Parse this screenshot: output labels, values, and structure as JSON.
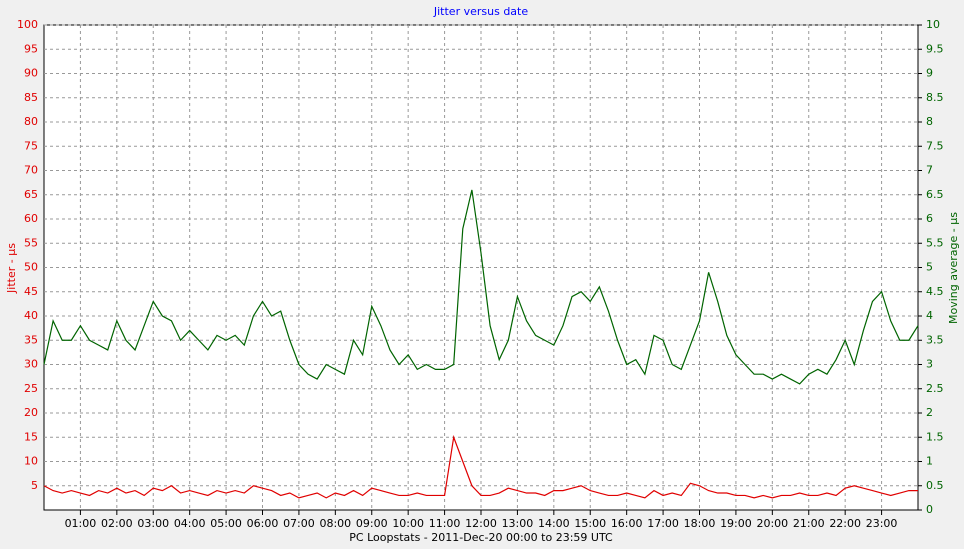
{
  "chart_data": {
    "type": "line",
    "title": "Jitter versus date",
    "xlabel": "PC Loopstats  -  2011-Dec-20 00:00  to  23:59 UTC",
    "ylabel": "Jitter - µs",
    "y2label": "Moving average - µs",
    "grid": true,
    "xlim": [
      0,
      24
    ],
    "xticks": [
      {
        "value": 1,
        "label": "01:00"
      },
      {
        "value": 2,
        "label": "02:00"
      },
      {
        "value": 3,
        "label": "03:00"
      },
      {
        "value": 4,
        "label": "04:00"
      },
      {
        "value": 5,
        "label": "05:00"
      },
      {
        "value": 6,
        "label": "06:00"
      },
      {
        "value": 7,
        "label": "07:00"
      },
      {
        "value": 8,
        "label": "08:00"
      },
      {
        "value": 9,
        "label": "09:00"
      },
      {
        "value": 10,
        "label": "10:00"
      },
      {
        "value": 11,
        "label": "11:00"
      },
      {
        "value": 12,
        "label": "12:00"
      },
      {
        "value": 13,
        "label": "13:00"
      },
      {
        "value": 14,
        "label": "14:00"
      },
      {
        "value": 15,
        "label": "15:00"
      },
      {
        "value": 16,
        "label": "16:00"
      },
      {
        "value": 17,
        "label": "17:00"
      },
      {
        "value": 18,
        "label": "18:00"
      },
      {
        "value": 19,
        "label": "19:00"
      },
      {
        "value": 20,
        "label": "20:00"
      },
      {
        "value": 21,
        "label": "21:00"
      },
      {
        "value": 22,
        "label": "22:00"
      },
      {
        "value": 23,
        "label": "23:00"
      }
    ],
    "ylim": [
      0,
      100
    ],
    "yticks": [
      5,
      10,
      15,
      20,
      25,
      30,
      35,
      40,
      45,
      50,
      55,
      60,
      65,
      70,
      75,
      80,
      85,
      90,
      95,
      100
    ],
    "y2lim": [
      0,
      10
    ],
    "y2ticks": [
      0,
      0.5,
      1,
      1.5,
      2,
      2.5,
      3,
      3.5,
      4,
      4.5,
      5,
      5.5,
      6,
      6.5,
      7,
      7.5,
      8,
      8.5,
      9,
      9.5,
      10
    ],
    "x": [
      0,
      0.25,
      0.5,
      0.75,
      1,
      1.25,
      1.5,
      1.75,
      2,
      2.25,
      2.5,
      2.75,
      3,
      3.25,
      3.5,
      3.75,
      4,
      4.25,
      4.5,
      4.75,
      5,
      5.25,
      5.5,
      5.75,
      6,
      6.25,
      6.5,
      6.75,
      7,
      7.25,
      7.5,
      7.75,
      8,
      8.25,
      8.5,
      8.75,
      9,
      9.25,
      9.5,
      9.75,
      10,
      10.25,
      10.5,
      10.75,
      11,
      11.25,
      11.5,
      11.75,
      12,
      12.25,
      12.5,
      12.75,
      13,
      13.25,
      13.5,
      13.75,
      14,
      14.25,
      14.5,
      14.75,
      15,
      15.25,
      15.5,
      15.75,
      16,
      16.25,
      16.5,
      16.75,
      17,
      17.25,
      17.5,
      17.75,
      18,
      18.25,
      18.5,
      18.75,
      19,
      19.25,
      19.5,
      19.75,
      20,
      20.25,
      20.5,
      20.75,
      21,
      21.25,
      21.5,
      21.75,
      22,
      22.25,
      22.5,
      22.75,
      23,
      23.25,
      23.5,
      23.75,
      24
    ],
    "series": [
      {
        "color": "#e00000",
        "axis": "y",
        "values": [
          5,
          4,
          3.5,
          4,
          3.5,
          3,
          4,
          3.5,
          4.5,
          3.5,
          4,
          3,
          4.5,
          4,
          5,
          3.5,
          4,
          3.5,
          3,
          4,
          3.5,
          4,
          3.5,
          5,
          4.5,
          4,
          3,
          3.5,
          2.5,
          3,
          3.5,
          2.5,
          3.5,
          3,
          4,
          3,
          4.5,
          4,
          3.5,
          3,
          3,
          3.5,
          3,
          3,
          3,
          15,
          10,
          5,
          3,
          3,
          3.5,
          4.5,
          4,
          3.5,
          3.5,
          3,
          4,
          4,
          4.5,
          5,
          4,
          3.5,
          3,
          3,
          3.5,
          3,
          2.5,
          4,
          3,
          3.5,
          3,
          5.5,
          5,
          4,
          3.5,
          3.5,
          3,
          3,
          2.5,
          3,
          2.5,
          3,
          3,
          3.5,
          3,
          3,
          3.5,
          3,
          4.5,
          5,
          4.5,
          4,
          3.5,
          3,
          3.5,
          4,
          4
        ]
      },
      {
        "color": "#006400",
        "axis": "y2",
        "values": [
          3.0,
          3.9,
          3.5,
          3.5,
          3.8,
          3.5,
          3.4,
          3.3,
          3.9,
          3.5,
          3.3,
          3.8,
          4.3,
          4.0,
          3.9,
          3.5,
          3.7,
          3.5,
          3.3,
          3.6,
          3.5,
          3.6,
          3.4,
          4.0,
          4.3,
          4.0,
          4.1,
          3.5,
          3.0,
          2.8,
          2.7,
          3.0,
          2.9,
          2.8,
          3.5,
          3.2,
          4.2,
          3.8,
          3.3,
          3.0,
          3.2,
          2.9,
          3.0,
          2.9,
          2.9,
          3.0,
          5.8,
          6.6,
          5.3,
          3.8,
          3.1,
          3.5,
          4.4,
          3.9,
          3.6,
          3.5,
          3.4,
          3.8,
          4.4,
          4.5,
          4.3,
          4.6,
          4.1,
          3.5,
          3.0,
          3.1,
          2.8,
          3.6,
          3.5,
          3.0,
          2.9,
          3.4,
          3.9,
          4.9,
          4.3,
          3.6,
          3.2,
          3.0,
          2.8,
          2.8,
          2.7,
          2.8,
          2.7,
          2.6,
          2.8,
          2.9,
          2.8,
          3.1,
          3.5,
          3.0,
          3.7,
          4.3,
          4.5,
          3.9,
          3.5,
          3.5,
          3.8
        ]
      }
    ]
  }
}
